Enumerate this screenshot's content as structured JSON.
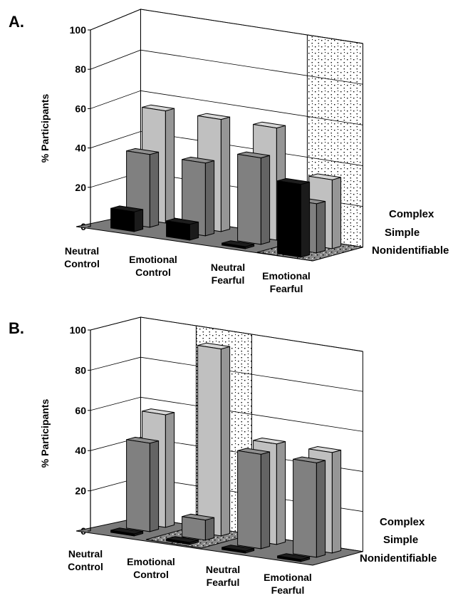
{
  "chart_data": [
    {
      "type": "bar",
      "panel_label": "A.",
      "ylabel": "% Participants",
      "ylim": [
        0,
        100
      ],
      "yticks": [
        0,
        20,
        40,
        60,
        80,
        100
      ],
      "categories": [
        "Neutral Control",
        "Emotional Control",
        "Neutral Fearful",
        "Emotional Fearful"
      ],
      "category_lines": [
        [
          "Neutral",
          "Control"
        ],
        [
          "Emotional",
          "Control"
        ],
        [
          "Neutral",
          "Fearful"
        ],
        [
          "Emotional",
          "Fearful"
        ]
      ],
      "series": [
        {
          "name": "Nonidentifiable",
          "values": [
            10,
            8,
            1,
            37
          ]
        },
        {
          "name": "Simple",
          "values": [
            37,
            37,
            44,
            25
          ]
        },
        {
          "name": "Complex",
          "values": [
            57,
            57,
            57,
            35
          ]
        }
      ],
      "highlight_category": 3,
      "grid": true
    },
    {
      "type": "bar",
      "panel_label": "B.",
      "ylabel": "% Participants",
      "ylim": [
        0,
        100
      ],
      "yticks": [
        0,
        20,
        40,
        60,
        80,
        100
      ],
      "categories": [
        "Neutral Control",
        "Emotional Control",
        "Neutral Fearful",
        "Emotional Fearful"
      ],
      "category_lines": [
        [
          "Neutral",
          "Control"
        ],
        [
          "Emotional",
          "Control"
        ],
        [
          "Neutral",
          "Fearful"
        ],
        [
          "Emotional",
          "Fearful"
        ]
      ],
      "series": [
        {
          "name": "Nonidentifiable",
          "values": [
            1,
            1,
            1,
            1
          ]
        },
        {
          "name": "Simple",
          "values": [
            44,
            10,
            47,
            47
          ]
        },
        {
          "name": "Complex",
          "values": [
            56,
            93,
            50,
            50
          ]
        }
      ],
      "highlight_category": 1,
      "grid": true
    }
  ],
  "colors": {
    "Nonidentifiable": "#000000",
    "Simple": "#808080",
    "Complex": "#c0c0c0",
    "floor": "#7a7a7a",
    "background": "#ffffff"
  }
}
